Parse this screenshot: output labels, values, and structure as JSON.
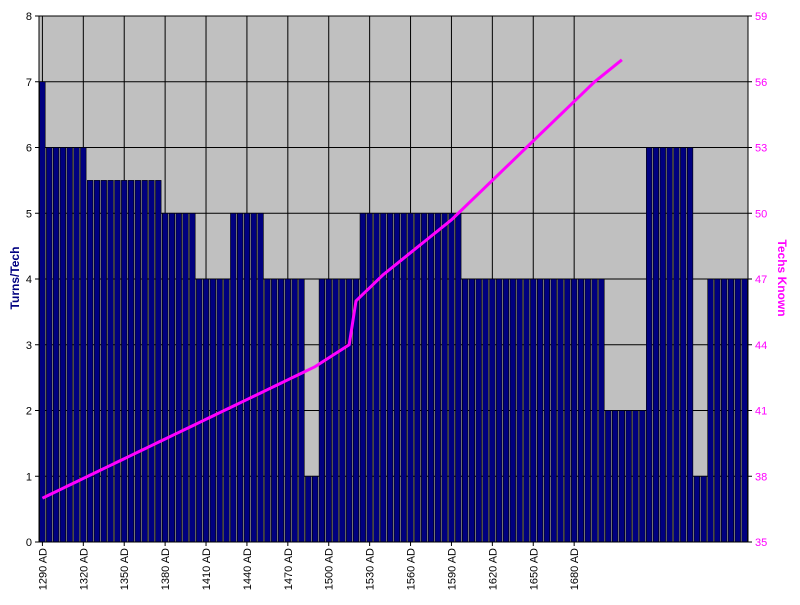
{
  "chart_data": {
    "type": "bar",
    "title": "",
    "ylabel": "Turns/Tech",
    "ylabel_right": "Techs Known",
    "ylim": [
      0,
      8
    ],
    "ylim_right": [
      35,
      59
    ],
    "yticks": [
      0,
      1,
      2,
      3,
      4,
      5,
      6,
      7,
      8
    ],
    "yticks_right": [
      35,
      38,
      41,
      44,
      47,
      50,
      53,
      56,
      59
    ],
    "xticks": [
      "1290 AD",
      "1320 AD",
      "1350 AD",
      "1380 AD",
      "1410 AD",
      "1440 AD",
      "1470 AD",
      "1500 AD",
      "1530 AD",
      "1560 AD",
      "1590 AD",
      "1620 AD",
      "1650 AD",
      "1680 AD"
    ],
    "x_start": 1290,
    "x_step": 5,
    "grid": true,
    "legend": "none",
    "colors": {
      "bar_fill": "#000080",
      "bar_stroke": "#000000",
      "line": "#ff00ff",
      "plot_bg": "#c0c0c0",
      "left_axis_label": "#000080",
      "right_axis_label": "#ff00ff"
    },
    "series": [
      {
        "type": "bar",
        "axis": "left",
        "values": [
          7,
          6,
          6,
          6,
          6,
          6,
          6,
          5.5,
          5.5,
          5.5,
          5.5,
          5.5,
          5.5,
          5.5,
          5.5,
          5.5,
          5.5,
          5.5,
          5,
          5,
          5,
          5,
          5,
          4,
          4,
          4,
          4,
          4,
          5,
          5,
          5,
          5,
          5,
          4,
          4,
          4,
          4,
          4,
          4,
          1,
          1,
          4,
          4,
          4,
          4,
          4,
          4,
          5,
          5,
          5,
          5,
          5,
          5,
          5,
          5,
          5,
          5,
          5,
          5,
          5,
          5,
          5,
          4,
          4,
          4,
          4,
          4,
          4,
          4,
          4,
          4,
          4,
          4,
          4,
          4,
          4,
          4,
          4,
          4,
          4,
          4,
          4,
          4,
          2,
          2,
          2,
          2,
          2,
          2,
          6,
          6,
          6,
          6,
          6,
          6,
          6,
          1,
          1,
          4,
          4,
          4,
          4,
          4,
          4
        ]
      },
      {
        "type": "line",
        "axis": "right",
        "values": [
          37,
          37.15,
          37.3,
          37.45,
          37.6,
          37.75,
          37.9,
          38.05,
          38.2,
          38.35,
          38.5,
          38.65,
          38.8,
          38.95,
          39.1,
          39.25,
          39.4,
          39.55,
          39.7,
          39.85,
          40,
          40.15,
          40.3,
          40.45,
          40.6,
          40.75,
          40.9,
          41.05,
          41.2,
          41.35,
          41.5,
          41.65,
          41.8,
          41.95,
          42.1,
          42.25,
          42.4,
          42.55,
          42.7,
          42.85,
          43,
          43.2,
          43.4,
          43.6,
          43.8,
          44,
          46,
          46.3,
          46.6,
          46.9,
          47.2,
          47.45,
          47.7,
          47.95,
          48.2,
          48.45,
          48.7,
          48.95,
          49.2,
          49.45,
          49.7,
          50,
          50.3,
          50.6,
          50.9,
          51.2,
          51.5,
          51.8,
          52.1,
          52.4,
          52.7,
          53,
          53.3,
          53.6,
          53.9,
          54.2,
          54.5,
          54.8,
          55.1,
          55.4,
          55.7,
          56,
          56.25,
          56.5,
          56.75,
          57
        ]
      }
    ]
  }
}
